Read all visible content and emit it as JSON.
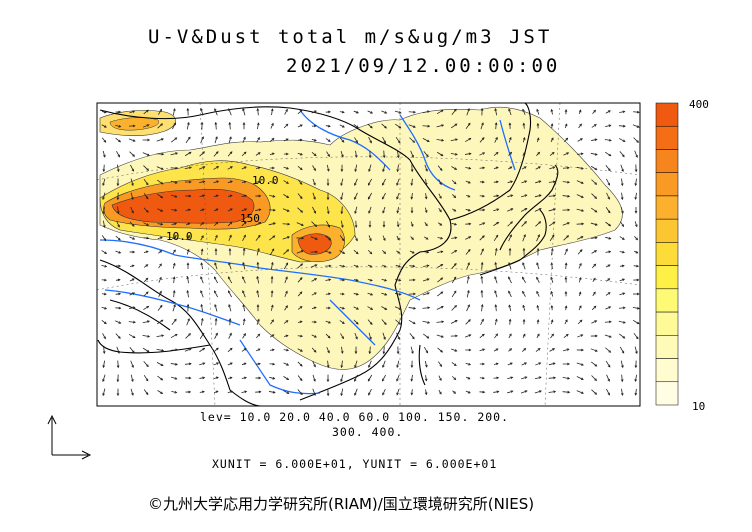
{
  "header": {
    "title_line1": "U-V&Dust total m/s&ug/m3 JST",
    "title_line2": "2021/09/12.00:00:00"
  },
  "legend": {
    "max_label": "400",
    "min_label": "10",
    "colors": [
      "#f05a10",
      "#f46e16",
      "#f7851e",
      "#f99a25",
      "#fbb12d",
      "#fcc633",
      "#fddc3a",
      "#fef046",
      "#fefa74",
      "#fefa98",
      "#fefbb8",
      "#fffcd0",
      "#fffde4"
    ]
  },
  "contour_info": {
    "levels_line1": "lev= 10.0 20.0 40.0 60.0 100. 150. 200.",
    "levels_line2": "300. 400.",
    "units_line": "XUNIT = 6.000E+01, YUNIT = 6.000E+01"
  },
  "contour_labels": [
    "10.0",
    "10.0",
    "150"
  ],
  "footer": {
    "copyright": "©九州大学応用力学研究所(RIAM)/国立環境研究所(NIES)"
  },
  "colors": {
    "sea": "#ffffff",
    "land_outline": "#000000",
    "rivers": "#1f6fff",
    "dust_low": "#fef7b8",
    "dust_high": "#f05a10"
  }
}
